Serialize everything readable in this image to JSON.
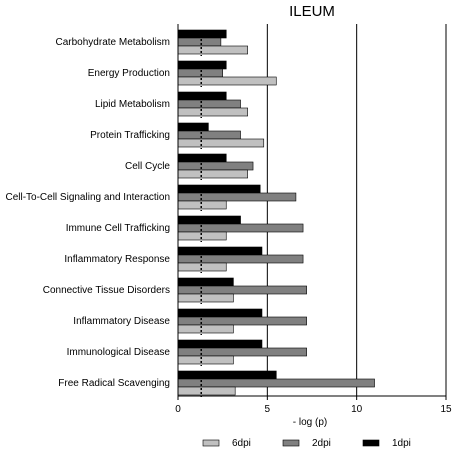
{
  "chart_data": {
    "type": "bar",
    "orientation": "horizontal",
    "title": "ILEUM",
    "xlabel": "- log (p)",
    "ylabel": "",
    "xlim": [
      0,
      15
    ],
    "xticks": [
      0,
      5,
      10,
      15
    ],
    "threshold_marker": 1.3,
    "grid": "vertical gridlines at 5, 10, 15",
    "legend_position": "bottom",
    "categories": [
      "Carbohydrate Metabolism",
      "Energy Production",
      "Lipid Metabolism",
      "Protein Trafficking",
      "Cell Cycle",
      "Cell-To-Cell Signaling and Interaction",
      "Immune Cell Trafficking",
      "Inflammatory Response",
      "Connective Tissue Disorders",
      "Inflammatory Disease",
      "Immunological Disease",
      "Free Radical Scavenging"
    ],
    "series": [
      {
        "name": "1dpi",
        "color": "#000000",
        "values": [
          2.7,
          2.7,
          2.7,
          1.7,
          2.7,
          4.6,
          3.5,
          4.7,
          3.1,
          4.7,
          4.7,
          5.5
        ]
      },
      {
        "name": "2dpi",
        "color": "#808080",
        "values": [
          2.4,
          2.5,
          3.5,
          3.5,
          4.2,
          6.6,
          7.0,
          7.0,
          7.2,
          7.2,
          7.2,
          11.0
        ]
      },
      {
        "name": "6dpi",
        "color": "#c0c0c0",
        "values": [
          3.9,
          5.5,
          3.9,
          4.8,
          3.9,
          2.7,
          2.7,
          2.7,
          3.1,
          3.1,
          3.1,
          3.2
        ]
      }
    ],
    "legend_order": [
      "6dpi",
      "2dpi",
      "1dpi"
    ]
  }
}
